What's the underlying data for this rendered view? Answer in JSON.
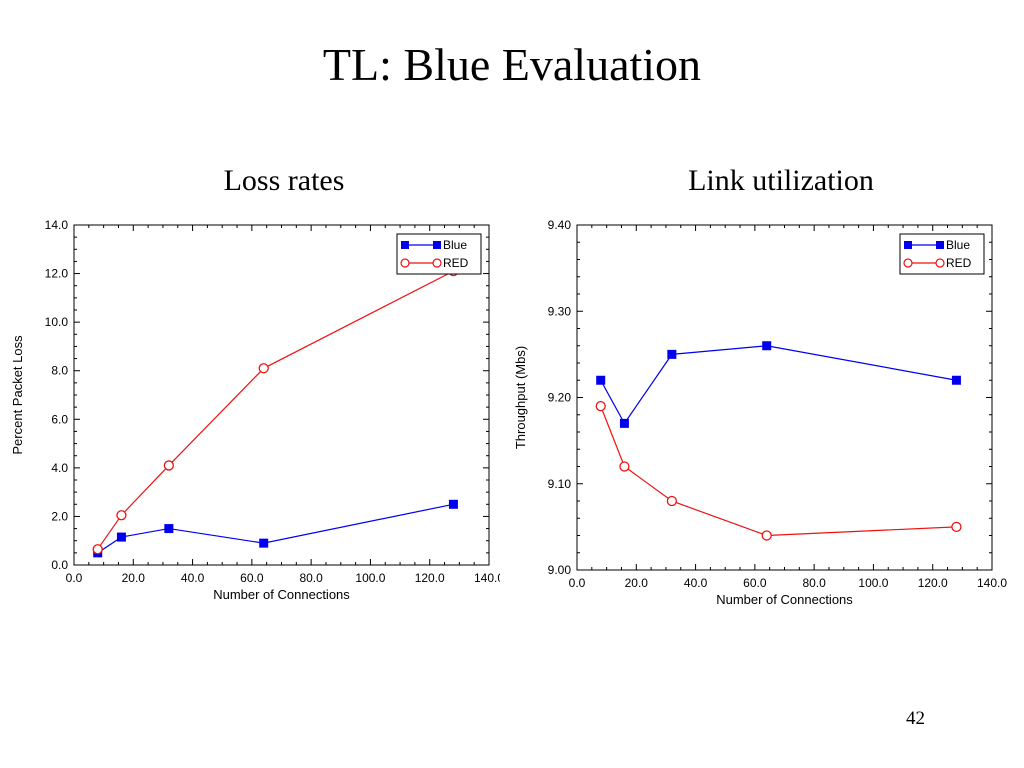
{
  "slide": {
    "title": "TL: Blue Evaluation",
    "page_number": "42"
  },
  "colors": {
    "blue": "#0000ee",
    "red": "#ee1111"
  },
  "chart_data": [
    {
      "type": "line",
      "caption": "Loss rates",
      "xlabel": "Number of Connections",
      "ylabel": "Percent Packet Loss",
      "xlim": [
        0,
        140
      ],
      "ylim": [
        0,
        14
      ],
      "x_ticks": [
        "0.0",
        "20.0",
        "40.0",
        "60.0",
        "80.0",
        "100.0",
        "120.0",
        "140.0"
      ],
      "y_ticks": [
        "0.0",
        "2.0",
        "4.0",
        "6.0",
        "8.0",
        "10.0",
        "12.0",
        "14.0"
      ],
      "legend_position": "top-right",
      "series": [
        {
          "name": "Blue",
          "marker": "square",
          "x": [
            8,
            16,
            32,
            64,
            128
          ],
          "y": [
            0.5,
            1.15,
            1.5,
            0.9,
            2.5
          ]
        },
        {
          "name": "RED",
          "marker": "circle",
          "x": [
            8,
            16,
            32,
            64,
            128
          ],
          "y": [
            0.65,
            2.05,
            4.1,
            8.1,
            12.1
          ]
        }
      ]
    },
    {
      "type": "line",
      "caption": "Link utilization",
      "xlabel": "Number of Connections",
      "ylabel": "Throughput (Mbs)",
      "xlim": [
        0,
        140
      ],
      "ylim": [
        9.0,
        9.4
      ],
      "x_ticks": [
        "0.0",
        "20.0",
        "40.0",
        "60.0",
        "80.0",
        "100.0",
        "120.0",
        "140.0"
      ],
      "y_ticks": [
        "9.00",
        "9.10",
        "9.20",
        "9.30",
        "9.40"
      ],
      "legend_position": "top-right",
      "series": [
        {
          "name": "Blue",
          "marker": "square",
          "x": [
            8,
            16,
            32,
            64,
            128
          ],
          "y": [
            9.22,
            9.17,
            9.25,
            9.26,
            9.22
          ]
        },
        {
          "name": "RED",
          "marker": "circle",
          "x": [
            8,
            16,
            32,
            64,
            128
          ],
          "y": [
            9.19,
            9.12,
            9.08,
            9.04,
            9.05
          ]
        }
      ]
    }
  ]
}
